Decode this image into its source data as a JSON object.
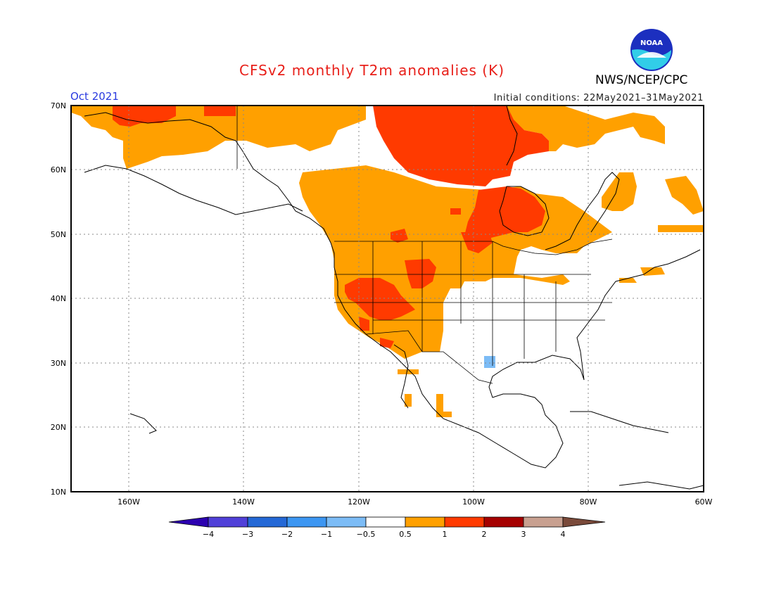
{
  "title": "CFSv2 monthly T2m anomalies (K)",
  "valid_month": "Oct 2021",
  "initial_conditions": "Initial conditions: 22May2021–31May2021",
  "organization": "NWS/NCEP/CPC",
  "logo_text": "NOAA",
  "axes": {
    "lat_labels": [
      "70N",
      "60N",
      "50N",
      "40N",
      "30N",
      "20N",
      "10N"
    ],
    "lon_labels": [
      "160W",
      "140W",
      "120W",
      "100W",
      "80W",
      "60W"
    ]
  },
  "colorbar": {
    "labels": [
      "−4",
      "−3",
      "−2",
      "−1",
      "−0.5",
      "0.5",
      "1",
      "2",
      "3",
      "4"
    ],
    "colors": [
      "#2c00b0",
      "#5040d8",
      "#2468d6",
      "#3c96f2",
      "#7cbcf6",
      "#ffffff",
      "#ffa000",
      "#ff3a00",
      "#a50000",
      "#c8a090",
      "#7a4a3a"
    ]
  },
  "anomaly_colors": {
    "warm_moderate": "#ffa000",
    "warm_strong": "#ff3a00",
    "cool_weak": "#7cbcf6"
  }
}
